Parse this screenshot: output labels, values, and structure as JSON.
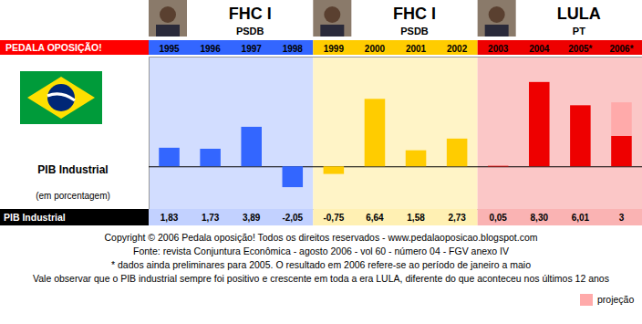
{
  "chart_data": {
    "type": "bar",
    "title": "PEDALA OPOSIÇÃO!",
    "ylabel": "PIB Industrial",
    "ylabel_note": "(em porcentagem)",
    "periods": [
      {
        "name": "FHC I",
        "party": "PSDB"
      },
      {
        "name": "FHC I",
        "party": "PSDB"
      },
      {
        "name": "LULA",
        "party": "PT"
      }
    ],
    "categories": [
      "1995",
      "1996",
      "1997",
      "1998",
      "1999",
      "2000",
      "2001",
      "2002",
      "2003",
      "2004",
      "2005*",
      "2006*"
    ],
    "series": [
      {
        "name": "PIB Industrial",
        "values": [
          1.83,
          1.73,
          3.89,
          -2.05,
          -0.75,
          6.64,
          1.58,
          2.73,
          0.05,
          8.3,
          6.01,
          3
        ],
        "value_labels": [
          "1,83",
          "1,73",
          "3,89",
          "-2,05",
          "-0,75",
          "6,64",
          "1,58",
          "2,73",
          "0,05",
          "8,30",
          "6,01",
          "3"
        ],
        "colors": [
          "#3366ff",
          "#3366ff",
          "#3366ff",
          "#3366ff",
          "#ffcc00",
          "#ffcc00",
          "#ffcc00",
          "#ffcc00",
          "#ee0000",
          "#ee0000",
          "#ee0000",
          "#ee0000"
        ],
        "data_labels": true
      },
      {
        "name": "projeção",
        "color": "#ffaaaa",
        "values": [
          null,
          null,
          null,
          null,
          null,
          null,
          null,
          null,
          null,
          null,
          null,
          3.3
        ]
      }
    ],
    "stacked": true,
    "ylim": [
      -4.2,
      10.8
    ],
    "yticks": [
      0
    ],
    "grid": true,
    "tick_labels": false,
    "legend": "bottom-right",
    "notes": [
      "Copyright © 2006 Pedala oposição! Todos os direitos reservados - www.pedalaoposicao.blogspot.com",
      "Fonte: revista Conjuntura Econômica - agosto 2006 - vol 60 - número 04 - FGV anexo IV",
      "* dados ainda preliminares para 2005. O resultado em 2006 refere-se ao período de janeiro a maio",
      "Vale observar que o PIB industrial sempre foi positivo e crescente em toda a era LULA, diferente do que aconteceu nos últimos 12 anos"
    ]
  }
}
